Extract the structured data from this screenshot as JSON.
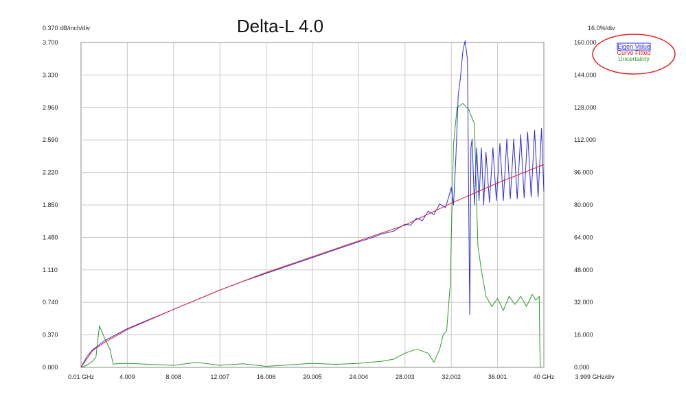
{
  "chart_data": {
    "type": "line",
    "title": "Delta-L 4.0",
    "left_scale_label": "0.370 dB/inch/div",
    "right_scale_label": "16.0%/div",
    "x_scale_label": "3.999 GHz/div",
    "x_ticks": [
      "0.01 GHz",
      "4.009",
      "8.008",
      "12.007",
      "16.006",
      "20.005",
      "24.004",
      "28.003",
      "32.002",
      "36.001",
      "40 GHz"
    ],
    "y_left_ticks": [
      "0.000",
      "0.370",
      "0.740",
      "1.110",
      "1.480",
      "1.850",
      "2.220",
      "2.590",
      "2.960",
      "3.330",
      "3.700"
    ],
    "y_right_ticks": [
      "0.000",
      "16.000",
      "32.000",
      "48.000",
      "64.000",
      "80.000",
      "96.000",
      "112.000",
      "128.000",
      "144.000",
      "160.000"
    ],
    "xlim": [
      0.01,
      40
    ],
    "ylim_left": [
      0,
      3.7
    ],
    "ylim_right": [
      0,
      160
    ],
    "grid": true,
    "legend_position": "top-right",
    "series": [
      {
        "name": "Eigen Value",
        "axis": "left",
        "color": "#2a2ae0",
        "x": [
          0.01,
          0.5,
          1,
          2,
          3,
          4,
          6,
          8,
          10,
          12,
          14,
          16,
          18,
          20,
          22,
          24,
          25,
          26,
          27,
          28,
          28.5,
          29,
          29.5,
          30,
          30.5,
          31,
          31.5,
          31.8,
          32,
          32.2,
          32.4,
          32.6,
          32.8,
          33.0,
          33.2,
          33.4,
          33.5,
          33.6,
          33.7,
          33.8,
          34.0,
          34.2,
          34.4,
          34.6,
          34.8,
          35.0,
          35.3,
          35.6,
          35.9,
          36.2,
          36.5,
          36.8,
          37.1,
          37.4,
          37.7,
          38.0,
          38.3,
          38.6,
          38.9,
          39.2,
          39.5,
          39.8,
          40
        ],
        "values": [
          0.0,
          0.12,
          0.2,
          0.3,
          0.37,
          0.44,
          0.55,
          0.66,
          0.77,
          0.88,
          0.98,
          1.07,
          1.16,
          1.25,
          1.34,
          1.43,
          1.47,
          1.52,
          1.55,
          1.63,
          1.62,
          1.7,
          1.67,
          1.78,
          1.74,
          1.86,
          1.82,
          1.95,
          2.05,
          1.85,
          2.4,
          3.1,
          3.3,
          3.6,
          3.72,
          3.5,
          2.0,
          0.6,
          2.5,
          2.6,
          1.85,
          2.5,
          1.9,
          2.5,
          1.85,
          2.45,
          1.88,
          2.5,
          1.9,
          2.55,
          1.9,
          2.6,
          1.92,
          2.6,
          1.92,
          2.65,
          1.93,
          2.68,
          1.94,
          2.7,
          1.94,
          2.72,
          2.0
        ]
      },
      {
        "name": "Curve Fitted",
        "axis": "left",
        "color": "#e02020",
        "x": [
          0.01,
          1,
          2,
          4,
          8,
          12,
          16,
          20,
          24,
          28,
          32,
          36,
          40
        ],
        "values": [
          0.0,
          0.19,
          0.28,
          0.43,
          0.66,
          0.88,
          1.08,
          1.26,
          1.44,
          1.62,
          1.87,
          2.1,
          2.31
        ]
      },
      {
        "name": "Uncertainty",
        "axis": "right",
        "color": "#2a9a2a",
        "x": [
          0.01,
          0.5,
          1,
          1.3,
          1.6,
          2,
          2.5,
          2.8,
          3.0,
          4,
          6,
          8,
          10,
          12,
          14,
          16,
          18,
          20,
          22,
          24,
          26,
          27,
          28,
          29,
          30,
          30.5,
          31,
          31.3,
          31.6,
          31.9,
          32.2,
          32.5,
          33.0,
          33.5,
          34.0,
          34.3,
          34.6,
          35.0,
          35.5,
          36.0,
          36.5,
          37,
          37.5,
          38,
          38.5,
          39,
          39.3,
          39.6,
          39.65,
          39.7
        ],
        "values": [
          0.0,
          1.0,
          3.0,
          5.0,
          20.5,
          15.0,
          9.0,
          1.5,
          1.8,
          2.0,
          1.5,
          1.0,
          2.5,
          1.0,
          1.8,
          0.5,
          1.2,
          2.0,
          1.5,
          2.0,
          3.0,
          4.0,
          7.0,
          9.0,
          7.0,
          2.5,
          9.0,
          16.0,
          18.0,
          40.0,
          110.0,
          128.0,
          130.0,
          127.0,
          120.0,
          60.0,
          48.0,
          35.0,
          30.0,
          34.0,
          28.0,
          35.0,
          31.0,
          35.0,
          30.0,
          36.0,
          33.0,
          35.0,
          10.0,
          0.0
        ]
      }
    ]
  }
}
